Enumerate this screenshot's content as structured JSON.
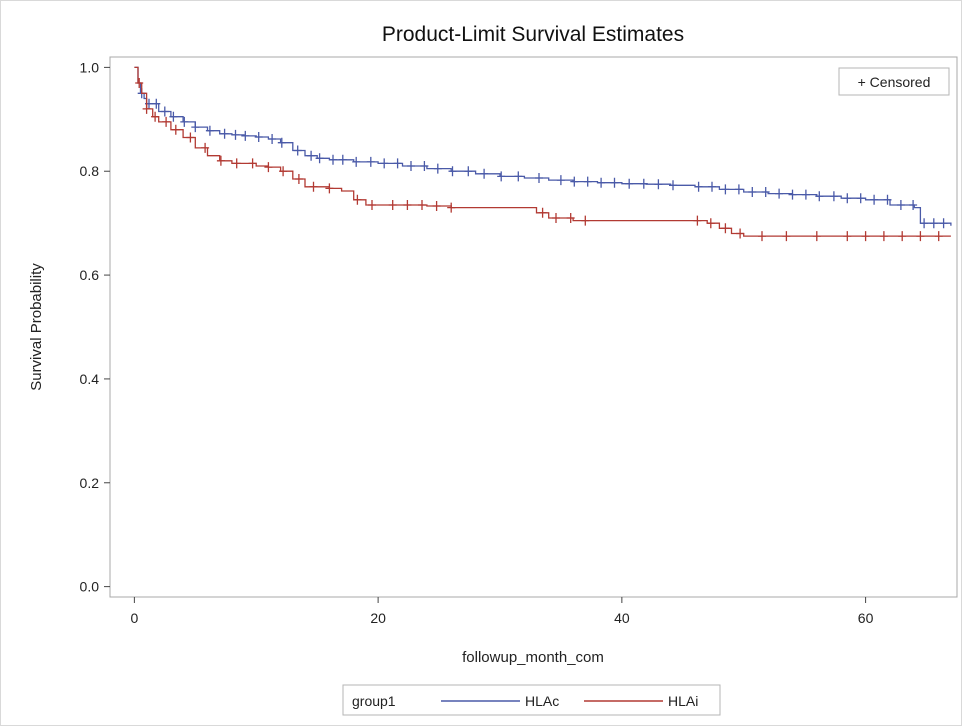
{
  "chart_data": {
    "type": "line",
    "title": "Product-Limit Survival Estimates",
    "xlabel": "followup_month_com",
    "ylabel": "Survival Probability",
    "xlim": [
      -2,
      67.5
    ],
    "ylim": [
      -0.02,
      1.02
    ],
    "x_ticks": [
      0,
      20,
      40,
      60
    ],
    "y_ticks": [
      0.0,
      0.2,
      0.4,
      0.6,
      0.8,
      1.0
    ],
    "x_tick_labels": [
      "0",
      "20",
      "40",
      "60"
    ],
    "y_tick_labels": [
      "0.0",
      "0.2",
      "0.4",
      "0.6",
      "0.8",
      "1.0"
    ],
    "censor_legend": "+ Censored",
    "legend_title": "group1",
    "legend_position": "bottom",
    "colors": {
      "HLAc": "#4a5aa8",
      "HLAi": "#b23a33"
    },
    "series": [
      {
        "name": "HLAc",
        "color": "#4a5aa8",
        "x": [
          0,
          0.3,
          0.5,
          0.8,
          1,
          2,
          3,
          4,
          5,
          6,
          7,
          8,
          9,
          10,
          11,
          12,
          13,
          14,
          15,
          16,
          18,
          20,
          22,
          24,
          26,
          28,
          30,
          32,
          34,
          36,
          38,
          40,
          42,
          44,
          46,
          48,
          50,
          52,
          54,
          56,
          58,
          60,
          62,
          64,
          64.5,
          67
        ],
        "y": [
          1.0,
          0.97,
          0.95,
          0.94,
          0.93,
          0.915,
          0.905,
          0.895,
          0.885,
          0.878,
          0.872,
          0.87,
          0.868,
          0.866,
          0.862,
          0.855,
          0.84,
          0.83,
          0.825,
          0.822,
          0.818,
          0.815,
          0.81,
          0.805,
          0.8,
          0.795,
          0.79,
          0.787,
          0.783,
          0.78,
          0.778,
          0.776,
          0.775,
          0.773,
          0.77,
          0.765,
          0.76,
          0.757,
          0.755,
          0.752,
          0.748,
          0.745,
          0.735,
          0.73,
          0.7,
          0.695
        ],
        "censored_x": [
          0.6,
          1.2,
          1.8,
          2.5,
          3.2,
          4.1,
          5.0,
          6.2,
          7.4,
          8.3,
          9.1,
          10.2,
          11.3,
          12.1,
          13.4,
          14.5,
          15.2,
          16.3,
          17.1,
          18.2,
          19.4,
          20.5,
          21.6,
          22.7,
          23.8,
          24.9,
          26.1,
          27.4,
          28.7,
          30.1,
          31.5,
          33.2,
          35.0,
          36.1,
          37.2,
          38.3,
          39.4,
          40.6,
          41.8,
          43.0,
          44.2,
          46.3,
          47.4,
          48.5,
          49.6,
          50.7,
          51.8,
          52.9,
          54.0,
          55.1,
          56.2,
          57.4,
          58.5,
          59.6,
          60.7,
          61.8,
          62.9,
          63.9,
          64.8,
          65.6,
          66.4
        ]
      },
      {
        "name": "HLAi",
        "color": "#b23a33",
        "x": [
          0,
          0.3,
          0.6,
          1,
          1.5,
          2,
          3,
          4,
          5,
          6,
          7,
          8,
          10,
          11,
          12,
          13,
          14,
          16,
          17,
          18,
          19,
          22,
          24,
          26,
          28,
          30,
          33,
          34,
          36,
          38,
          40,
          42,
          44,
          46,
          47,
          48,
          49,
          50,
          55,
          60,
          67
        ],
        "y": [
          1.0,
          0.97,
          0.95,
          0.92,
          0.905,
          0.895,
          0.88,
          0.865,
          0.845,
          0.83,
          0.82,
          0.815,
          0.81,
          0.808,
          0.8,
          0.785,
          0.77,
          0.767,
          0.762,
          0.745,
          0.735,
          0.735,
          0.733,
          0.73,
          0.73,
          0.73,
          0.72,
          0.71,
          0.705,
          0.705,
          0.705,
          0.705,
          0.705,
          0.705,
          0.7,
          0.69,
          0.68,
          0.675,
          0.675,
          0.675,
          0.675
        ],
        "censored_x": [
          0.4,
          1.0,
          1.7,
          2.6,
          3.4,
          4.6,
          5.8,
          7.1,
          8.4,
          9.7,
          11.0,
          12.2,
          13.5,
          14.7,
          16.0,
          18.3,
          19.5,
          21.2,
          22.4,
          23.6,
          24.8,
          26.0,
          33.5,
          34.6,
          35.8,
          37.0,
          46.2,
          47.3,
          48.5,
          49.7,
          51.5,
          53.5,
          56.0,
          58.5,
          60.0,
          61.5,
          63.0,
          64.5,
          66.0
        ]
      }
    ]
  }
}
